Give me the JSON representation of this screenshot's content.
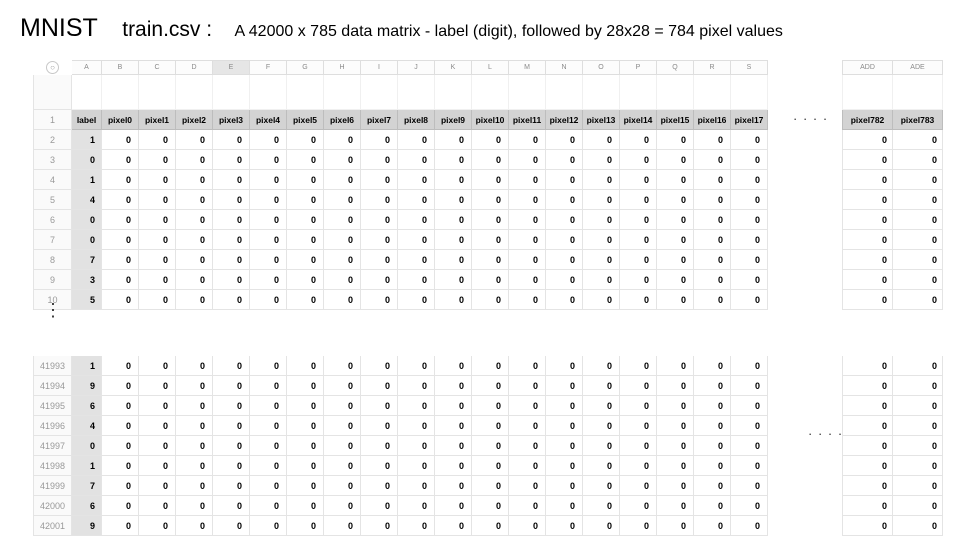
{
  "title": {
    "main": "MNIST",
    "file": "train.csv :",
    "description": "A 42000 x 785 data matrix  -  label (digit), followed by 28x28 = 784 pixel values"
  },
  "column_letters": [
    "A",
    "B",
    "C",
    "D",
    "E",
    "F",
    "G",
    "H",
    "I",
    "J",
    "K",
    "L",
    "M",
    "N",
    "O",
    "P",
    "Q",
    "R",
    "S"
  ],
  "right_column_letters": [
    "ADD",
    "ADE"
  ],
  "header_row_number": "1",
  "headers": [
    "label",
    "pixel0",
    "pixel1",
    "pixel2",
    "pixel3",
    "pixel4",
    "pixel5",
    "pixel6",
    "pixel7",
    "pixel8",
    "pixel9",
    "pixel10",
    "pixel11",
    "pixel12",
    "pixel13",
    "pixel14",
    "pixel15",
    "pixel16",
    "pixel17"
  ],
  "right_headers": [
    "pixel782",
    "pixel783"
  ],
  "top_rows": [
    {
      "row": "2",
      "label": "1"
    },
    {
      "row": "3",
      "label": "0"
    },
    {
      "row": "4",
      "label": "1"
    },
    {
      "row": "5",
      "label": "4"
    },
    {
      "row": "6",
      "label": "0"
    },
    {
      "row": "7",
      "label": "0"
    },
    {
      "row": "8",
      "label": "7"
    },
    {
      "row": "9",
      "label": "3"
    },
    {
      "row": "10",
      "label": "5"
    }
  ],
  "bottom_rows": [
    {
      "row": "41993",
      "label": "1"
    },
    {
      "row": "41994",
      "label": "9"
    },
    {
      "row": "41995",
      "label": "6"
    },
    {
      "row": "41996",
      "label": "4"
    },
    {
      "row": "41997",
      "label": "0"
    },
    {
      "row": "41998",
      "label": "1"
    },
    {
      "row": "41999",
      "label": "7"
    },
    {
      "row": "42000",
      "label": "6"
    },
    {
      "row": "42001",
      "label": "9"
    }
  ],
  "pixel_value": "0",
  "ellipsis": "· · · ·",
  "vertical_ellipsis": "⋮"
}
